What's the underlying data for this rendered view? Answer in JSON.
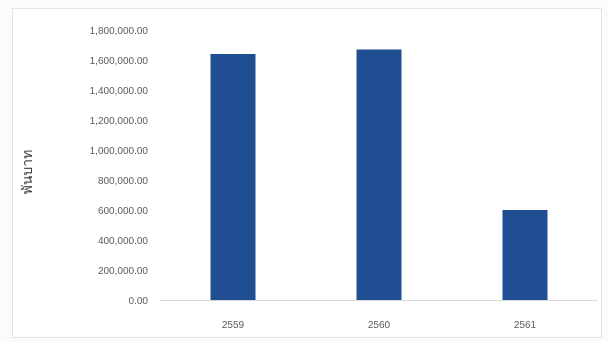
{
  "chart_data": {
    "type": "bar",
    "title": "",
    "xlabel": "",
    "ylabel": "พันบาท",
    "categories": [
      "2559",
      "2560",
      "2561"
    ],
    "values": [
      1640000,
      1670000,
      600000
    ],
    "ylim": [
      0,
      1800000
    ],
    "yticks": [
      "0.00",
      "200,000.00",
      "400,000.00",
      "600,000.00",
      "800,000.00",
      "1,000,000.00",
      "1,200,000.00",
      "1,400,000.00",
      "1,600,000.00",
      "1,800,000.00"
    ],
    "grid": false,
    "legend": "none",
    "bar_color": "#1f4e93",
    "axis_color": "#d9d9d9",
    "tick_text_color": "#5a5a5a"
  }
}
